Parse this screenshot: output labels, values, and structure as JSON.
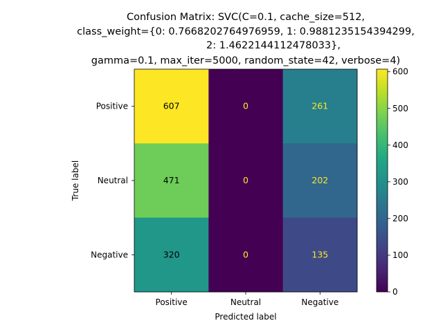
{
  "chart_data": {
    "type": "heatmap",
    "title_lines": [
      "Confusion Matrix: SVC(C=0.1, cache_size=512,",
      "class_weight={0: 0.7668202764976959, 1: 0.9881235154394299,",
      "2: 1.4622144112478033},",
      "gamma=0.1, max_iter=5000, random_state=42, verbose=4)"
    ],
    "xlabel": "Predicted label",
    "ylabel": "True label",
    "x_categories": [
      "Positive",
      "Neutral",
      "Negative"
    ],
    "y_categories": [
      "Positive",
      "Neutral",
      "Negative"
    ],
    "values": [
      [
        607,
        0,
        261
      ],
      [
        471,
        0,
        202
      ],
      [
        320,
        0,
        135
      ]
    ],
    "colormap": "viridis",
    "colorbar": {
      "min": 0,
      "max": 607,
      "ticks": [
        0,
        100,
        200,
        300,
        400,
        500,
        600
      ]
    },
    "text_color_light": "#fde725",
    "text_color_dark": "#000000"
  }
}
